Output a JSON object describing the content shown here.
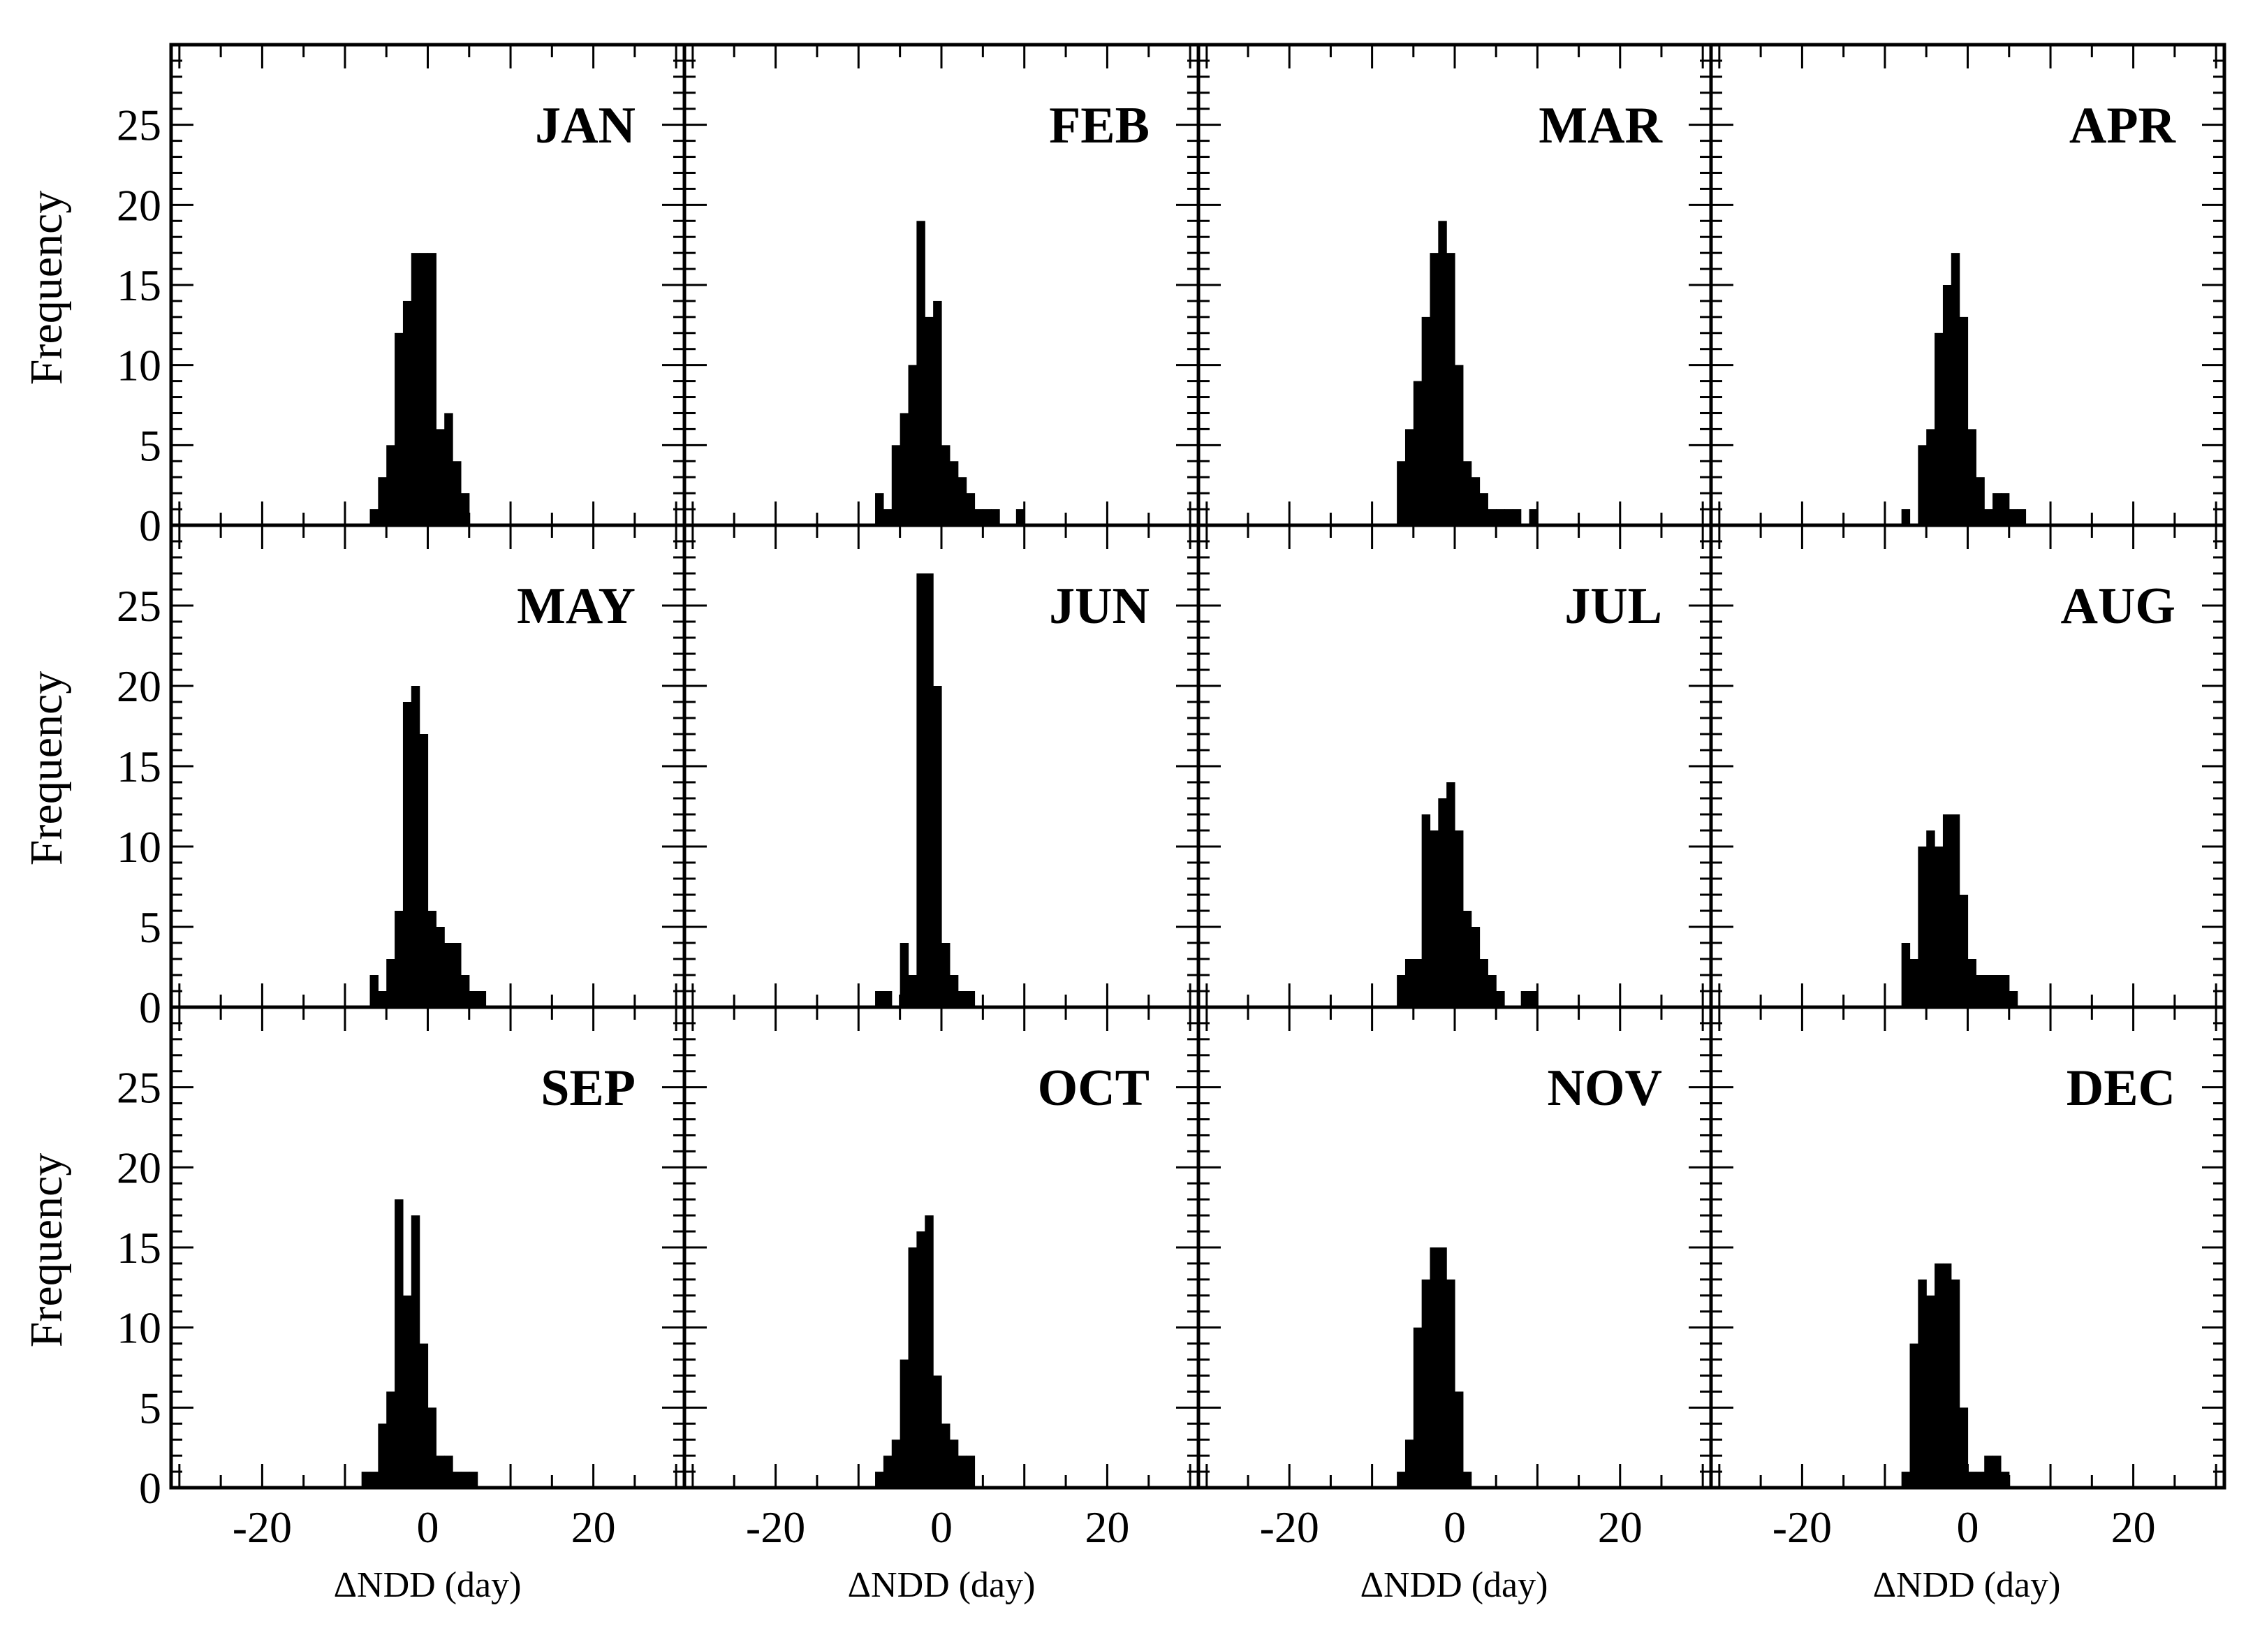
{
  "chart_data": {
    "type": "bar",
    "layout": "4x3 panel grid of histograms",
    "ylabel": "Frequency",
    "xlabel": "ΔNDD (day)",
    "xlim": [
      -31,
      31
    ],
    "ylim": [
      0,
      30
    ],
    "xticks_labeled": [
      -20,
      0,
      20
    ],
    "yticks_labeled": [
      0,
      5,
      10,
      15,
      20,
      25
    ],
    "bin_width": 1,
    "grid": false,
    "bar_color": "#000000",
    "panels": [
      {
        "name": "JAN",
        "bins": [
          [
            -7,
            1
          ],
          [
            -6,
            3
          ],
          [
            -5,
            5
          ],
          [
            -4,
            12
          ],
          [
            -3,
            14
          ],
          [
            -2,
            17
          ],
          [
            -1,
            17
          ],
          [
            0,
            17
          ],
          [
            1,
            6
          ],
          [
            2,
            7
          ],
          [
            3,
            4
          ],
          [
            4,
            2
          ]
        ]
      },
      {
        "name": "FEB",
        "bins": [
          [
            -8,
            2
          ],
          [
            -7,
            1
          ],
          [
            -6,
            5
          ],
          [
            -5,
            7
          ],
          [
            -4,
            10
          ],
          [
            -3,
            19
          ],
          [
            -2,
            13
          ],
          [
            -1,
            14
          ],
          [
            0,
            5
          ],
          [
            1,
            4
          ],
          [
            2,
            3
          ],
          [
            3,
            2
          ],
          [
            4,
            1
          ],
          [
            5,
            1
          ],
          [
            6,
            1
          ],
          [
            9,
            1
          ]
        ]
      },
      {
        "name": "MAR",
        "bins": [
          [
            -7,
            4
          ],
          [
            -6,
            6
          ],
          [
            -5,
            9
          ],
          [
            -4,
            13
          ],
          [
            -3,
            17
          ],
          [
            -2,
            19
          ],
          [
            -1,
            17
          ],
          [
            0,
            10
          ],
          [
            1,
            4
          ],
          [
            2,
            3
          ],
          [
            3,
            2
          ],
          [
            4,
            1
          ],
          [
            5,
            1
          ],
          [
            6,
            1
          ],
          [
            7,
            1
          ],
          [
            9,
            1
          ]
        ]
      },
      {
        "name": "APR",
        "bins": [
          [
            -8,
            1
          ],
          [
            -6,
            5
          ],
          [
            -5,
            6
          ],
          [
            -4,
            12
          ],
          [
            -3,
            15
          ],
          [
            -2,
            17
          ],
          [
            -1,
            13
          ],
          [
            0,
            6
          ],
          [
            1,
            3
          ],
          [
            2,
            1
          ],
          [
            3,
            2
          ],
          [
            4,
            2
          ],
          [
            5,
            1
          ],
          [
            6,
            1
          ]
        ]
      },
      {
        "name": "MAY",
        "bins": [
          [
            -7,
            2
          ],
          [
            -6,
            1
          ],
          [
            -5,
            3
          ],
          [
            -4,
            6
          ],
          [
            -3,
            19
          ],
          [
            -2,
            20
          ],
          [
            -1,
            17
          ],
          [
            0,
            6
          ],
          [
            1,
            5
          ],
          [
            2,
            4
          ],
          [
            3,
            4
          ],
          [
            4,
            2
          ],
          [
            5,
            1
          ],
          [
            6,
            1
          ]
        ]
      },
      {
        "name": "JUN",
        "bins": [
          [
            -8,
            1
          ],
          [
            -7,
            1
          ],
          [
            -5,
            4
          ],
          [
            -4,
            2
          ],
          [
            -3,
            27
          ],
          [
            -2,
            27
          ],
          [
            -1,
            20
          ],
          [
            0,
            4
          ],
          [
            1,
            2
          ],
          [
            2,
            1
          ],
          [
            3,
            1
          ]
        ]
      },
      {
        "name": "JUL",
        "bins": [
          [
            -7,
            2
          ],
          [
            -6,
            3
          ],
          [
            -5,
            3
          ],
          [
            -4,
            12
          ],
          [
            -3,
            11
          ],
          [
            -2,
            13
          ],
          [
            -1,
            14
          ],
          [
            0,
            11
          ],
          [
            1,
            6
          ],
          [
            2,
            5
          ],
          [
            3,
            3
          ],
          [
            4,
            2
          ],
          [
            5,
            1
          ],
          [
            8,
            1
          ],
          [
            9,
            1
          ]
        ]
      },
      {
        "name": "AUG",
        "bins": [
          [
            -8,
            4
          ],
          [
            -7,
            3
          ],
          [
            -6,
            10
          ],
          [
            -5,
            11
          ],
          [
            -4,
            10
          ],
          [
            -3,
            12
          ],
          [
            -2,
            12
          ],
          [
            -1,
            7
          ],
          [
            0,
            3
          ],
          [
            1,
            2
          ],
          [
            2,
            2
          ],
          [
            3,
            2
          ],
          [
            4,
            2
          ],
          [
            5,
            1
          ]
        ]
      },
      {
        "name": "SEP",
        "bins": [
          [
            -8,
            1
          ],
          [
            -7,
            1
          ],
          [
            -6,
            4
          ],
          [
            -5,
            6
          ],
          [
            -4,
            18
          ],
          [
            -3,
            12
          ],
          [
            -2,
            17
          ],
          [
            -1,
            9
          ],
          [
            0,
            5
          ],
          [
            1,
            2
          ],
          [
            2,
            2
          ],
          [
            3,
            1
          ],
          [
            4,
            1
          ],
          [
            5,
            1
          ]
        ]
      },
      {
        "name": "OCT",
        "bins": [
          [
            -8,
            1
          ],
          [
            -7,
            2
          ],
          [
            -6,
            3
          ],
          [
            -5,
            8
          ],
          [
            -4,
            15
          ],
          [
            -3,
            16
          ],
          [
            -2,
            17
          ],
          [
            -1,
            7
          ],
          [
            0,
            4
          ],
          [
            1,
            3
          ],
          [
            2,
            2
          ],
          [
            3,
            2
          ]
        ]
      },
      {
        "name": "NOV",
        "bins": [
          [
            -7,
            1
          ],
          [
            -6,
            3
          ],
          [
            -5,
            10
          ],
          [
            -4,
            13
          ],
          [
            -3,
            15
          ],
          [
            -2,
            15
          ],
          [
            -1,
            13
          ],
          [
            0,
            6
          ],
          [
            1,
            1
          ]
        ]
      },
      {
        "name": "DEC",
        "bins": [
          [
            -8,
            1
          ],
          [
            -7,
            9
          ],
          [
            -6,
            13
          ],
          [
            -5,
            12
          ],
          [
            -4,
            14
          ],
          [
            -3,
            14
          ],
          [
            -2,
            13
          ],
          [
            -1,
            5
          ],
          [
            0,
            1
          ],
          [
            1,
            1
          ],
          [
            2,
            2
          ],
          [
            3,
            2
          ],
          [
            4,
            1
          ]
        ]
      }
    ]
  }
}
